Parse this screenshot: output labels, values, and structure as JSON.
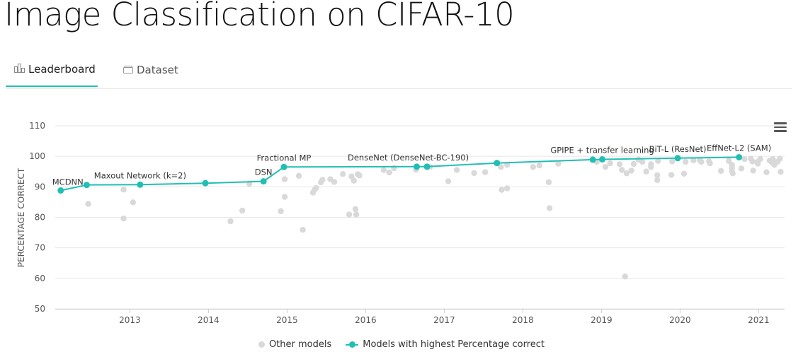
{
  "page": {
    "title": "Image Classification on CIFAR-10"
  },
  "tabs": [
    {
      "label": "Leaderboard",
      "icon": "bar-chart-icon",
      "active": true
    },
    {
      "label": "Dataset",
      "icon": "dataset-icon",
      "active": false
    }
  ],
  "menu": {
    "icon": "hamburger-menu-icon"
  },
  "colors": {
    "accent": "#21bfb3",
    "other_models": "#d9d9d9",
    "grid": "#e6e6e6"
  },
  "chart_data": {
    "type": "scatter",
    "title": "",
    "xlabel": "",
    "ylabel": "PERCENTAGE CORRECT",
    "ylim": [
      50,
      110
    ],
    "xlim": [
      2012.05,
      2021.33
    ],
    "y_ticks": [
      "50",
      "60",
      "70",
      "80",
      "90",
      "100",
      "110"
    ],
    "x_ticks": [
      "2013",
      "2014",
      "2015",
      "2016",
      "2017",
      "2018",
      "2019",
      "2020",
      "2021"
    ],
    "grid": true,
    "legend_position": "bottom",
    "legend": [
      "Other models",
      "Models with highest Percentage correct"
    ],
    "series": [
      {
        "name": "Models with highest Percentage correct",
        "type": "line",
        "color": "#21bfb3",
        "points": [
          {
            "x": 2012.12,
            "y": 88.8,
            "label": "MCDNN"
          },
          {
            "x": 2012.45,
            "y": 90.6,
            "label": ""
          },
          {
            "x": 2013.13,
            "y": 90.7,
            "label": "Maxout Network (k=2)"
          },
          {
            "x": 2013.96,
            "y": 91.2,
            "label": ""
          },
          {
            "x": 2014.7,
            "y": 91.8,
            "label": "DSN"
          },
          {
            "x": 2014.96,
            "y": 96.5,
            "label": "Fractional MP"
          },
          {
            "x": 2016.65,
            "y": 96.6,
            "label": "DenseNet (DenseNet-BC-190)"
          },
          {
            "x": 2016.78,
            "y": 96.6,
            "label": ""
          },
          {
            "x": 2017.67,
            "y": 97.8,
            "label": ""
          },
          {
            "x": 2018.89,
            "y": 98.9,
            "label": ""
          },
          {
            "x": 2019.01,
            "y": 99.0,
            "label": "GPIPE + transfer learning"
          },
          {
            "x": 2019.97,
            "y": 99.4,
            "label": "BiT-L (ResNet)"
          },
          {
            "x": 2020.75,
            "y": 99.7,
            "label": "EffNet-L2 (SAM)"
          }
        ]
      },
      {
        "name": "Other models",
        "type": "scatter",
        "color": "#d9d9d9",
        "points": [
          {
            "x": 2012.47,
            "y": 84.4
          },
          {
            "x": 2012.92,
            "y": 89.1
          },
          {
            "x": 2012.92,
            "y": 79.6
          },
          {
            "x": 2013.04,
            "y": 84.9
          },
          {
            "x": 2014.28,
            "y": 78.7
          },
          {
            "x": 2014.43,
            "y": 82.2
          },
          {
            "x": 2014.52,
            "y": 91.0
          },
          {
            "x": 2014.92,
            "y": 82.0
          },
          {
            "x": 2014.97,
            "y": 86.7
          },
          {
            "x": 2014.97,
            "y": 92.5
          },
          {
            "x": 2015.15,
            "y": 93.6
          },
          {
            "x": 2015.2,
            "y": 75.9
          },
          {
            "x": 2015.33,
            "y": 88.1
          },
          {
            "x": 2015.35,
            "y": 89.0
          },
          {
            "x": 2015.37,
            "y": 89.6
          },
          {
            "x": 2015.43,
            "y": 91.5
          },
          {
            "x": 2015.45,
            "y": 92.3
          },
          {
            "x": 2015.55,
            "y": 92.5
          },
          {
            "x": 2015.6,
            "y": 91.6
          },
          {
            "x": 2015.71,
            "y": 94.2
          },
          {
            "x": 2015.79,
            "y": 80.9
          },
          {
            "x": 2015.82,
            "y": 93.4
          },
          {
            "x": 2015.85,
            "y": 92.0
          },
          {
            "x": 2015.87,
            "y": 82.7
          },
          {
            "x": 2015.88,
            "y": 80.9
          },
          {
            "x": 2015.9,
            "y": 94.1
          },
          {
            "x": 2015.92,
            "y": 93.7
          },
          {
            "x": 2016.23,
            "y": 95.5
          },
          {
            "x": 2016.3,
            "y": 94.7
          },
          {
            "x": 2016.36,
            "y": 96.1
          },
          {
            "x": 2016.64,
            "y": 95.6
          },
          {
            "x": 2016.82,
            "y": 96.5
          },
          {
            "x": 2017.05,
            "y": 91.8
          },
          {
            "x": 2017.16,
            "y": 95.5
          },
          {
            "x": 2017.38,
            "y": 94.5
          },
          {
            "x": 2017.52,
            "y": 94.8
          },
          {
            "x": 2017.72,
            "y": 96.5
          },
          {
            "x": 2017.73,
            "y": 89.0
          },
          {
            "x": 2017.8,
            "y": 89.5
          },
          {
            "x": 2017.8,
            "y": 97.2
          },
          {
            "x": 2018.13,
            "y": 96.5
          },
          {
            "x": 2018.21,
            "y": 97.0
          },
          {
            "x": 2018.33,
            "y": 91.5
          },
          {
            "x": 2018.34,
            "y": 83.0
          },
          {
            "x": 2018.45,
            "y": 97.6
          },
          {
            "x": 2018.94,
            "y": 98.2
          },
          {
            "x": 2019.05,
            "y": 96.5
          },
          {
            "x": 2019.11,
            "y": 97.7
          },
          {
            "x": 2019.23,
            "y": 97.4
          },
          {
            "x": 2019.26,
            "y": 95.5
          },
          {
            "x": 2019.3,
            "y": 60.6
          },
          {
            "x": 2019.32,
            "y": 94.4
          },
          {
            "x": 2019.38,
            "y": 95.3
          },
          {
            "x": 2019.41,
            "y": 97.5
          },
          {
            "x": 2019.47,
            "y": 98.9
          },
          {
            "x": 2019.52,
            "y": 98.2
          },
          {
            "x": 2019.57,
            "y": 95.0
          },
          {
            "x": 2019.63,
            "y": 97.4
          },
          {
            "x": 2019.63,
            "y": 96.5
          },
          {
            "x": 2019.71,
            "y": 93.8
          },
          {
            "x": 2019.71,
            "y": 92.2
          },
          {
            "x": 2019.72,
            "y": 98.5
          },
          {
            "x": 2019.89,
            "y": 93.9
          },
          {
            "x": 2019.9,
            "y": 98.3
          },
          {
            "x": 2020.05,
            "y": 94.3
          },
          {
            "x": 2020.07,
            "y": 98.2
          },
          {
            "x": 2020.17,
            "y": 98.7
          },
          {
            "x": 2020.25,
            "y": 98.8
          },
          {
            "x": 2020.27,
            "y": 98.2
          },
          {
            "x": 2020.37,
            "y": 98.3
          },
          {
            "x": 2020.38,
            "y": 97.7
          },
          {
            "x": 2020.52,
            "y": 95.2
          },
          {
            "x": 2020.62,
            "y": 98.5
          },
          {
            "x": 2020.66,
            "y": 97.2
          },
          {
            "x": 2020.66,
            "y": 96.2
          },
          {
            "x": 2020.66,
            "y": 95.1
          },
          {
            "x": 2020.67,
            "y": 94.4
          },
          {
            "x": 2020.78,
            "y": 96.0
          },
          {
            "x": 2020.82,
            "y": 99.1
          },
          {
            "x": 2020.9,
            "y": 99.2
          },
          {
            "x": 2020.92,
            "y": 98.3
          },
          {
            "x": 2020.93,
            "y": 95.3
          },
          {
            "x": 2020.98,
            "y": 98.1
          },
          {
            "x": 2020.99,
            "y": 97.6
          },
          {
            "x": 2021.02,
            "y": 99.1
          },
          {
            "x": 2021.1,
            "y": 94.8
          },
          {
            "x": 2021.14,
            "y": 98.6
          },
          {
            "x": 2021.17,
            "y": 98.0
          },
          {
            "x": 2021.18,
            "y": 99.1
          },
          {
            "x": 2021.2,
            "y": 97.2
          },
          {
            "x": 2021.24,
            "y": 98.2
          },
          {
            "x": 2021.27,
            "y": 99.2
          },
          {
            "x": 2021.28,
            "y": 94.9
          }
        ]
      }
    ]
  }
}
